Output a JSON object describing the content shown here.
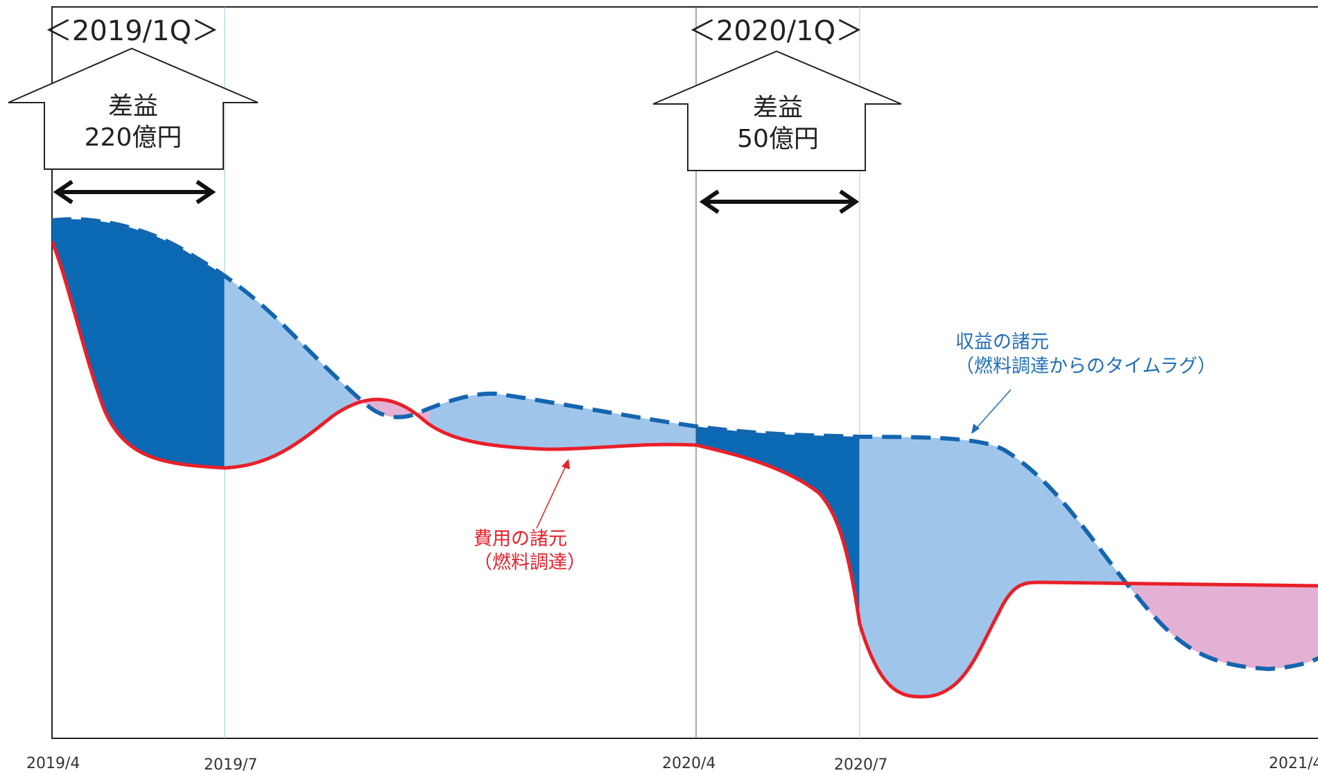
{
  "periods": [
    {
      "title": "＜2019/1Q＞",
      "line1": "差益",
      "line2": "220億円"
    },
    {
      "title": "＜2020/1Q＞",
      "line1": "差益",
      "line2": "50億円"
    }
  ],
  "x_axis": {
    "ticks": [
      "2019/4",
      "2019/7",
      "2020/4",
      "2020/7",
      "2021/4"
    ]
  },
  "revenue_label": {
    "line1": "収益の諸元",
    "line2": "（燃料調達からのタイムラグ）",
    "color": "#1f6fb8"
  },
  "cost_label": {
    "line1": "費用の諸元",
    "line2": "（燃料調達）",
    "color": "#e8202a"
  },
  "colors": {
    "revenue_line": "#1565b0",
    "cost_line": "#e8202a",
    "margin_in_period": "#0b69b4",
    "margin_other": "#9fc6ea",
    "negative_margin": "#e3b1d3"
  }
}
